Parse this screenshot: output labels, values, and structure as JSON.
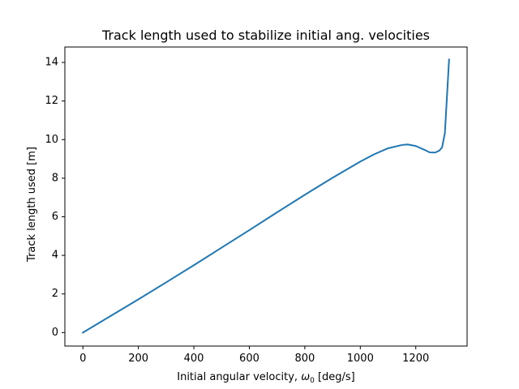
{
  "chart_data": {
    "type": "line",
    "title": "Track length used to stabilize initial ang. velocities",
    "xlabel_main": "Initial angular velocity, ",
    "xlabel_omega": "ω",
    "xlabel_sub": "0",
    "xlabel_unit": " [deg/s]",
    "ylabel": "Track length used [m]",
    "xlim": [
      -65,
      1385
    ],
    "ylim": [
      -0.7,
      14.8
    ],
    "xticks": [
      0,
      200,
      400,
      600,
      800,
      1000,
      1200
    ],
    "yticks": [
      0,
      2,
      4,
      6,
      8,
      10,
      12,
      14
    ],
    "xtick_labels": [
      "0",
      "200",
      "400",
      "600",
      "800",
      "1000",
      "1200"
    ],
    "ytick_labels": [
      "0",
      "2",
      "4",
      "6",
      "8",
      "10",
      "12",
      "14"
    ],
    "grid": false,
    "line_color": "#1f77b4",
    "series": [
      {
        "x": [
          0,
          100,
          200,
          300,
          400,
          500,
          600,
          700,
          800,
          900,
          1000,
          1050,
          1100,
          1150,
          1170,
          1200,
          1230,
          1250,
          1270,
          1285,
          1295,
          1305,
          1320
        ],
        "y": [
          0,
          0.86,
          1.72,
          2.6,
          3.49,
          4.4,
          5.31,
          6.23,
          7.14,
          8.02,
          8.86,
          9.24,
          9.55,
          9.72,
          9.75,
          9.67,
          9.48,
          9.34,
          9.33,
          9.43,
          9.6,
          10.35,
          14.15
        ]
      }
    ]
  }
}
